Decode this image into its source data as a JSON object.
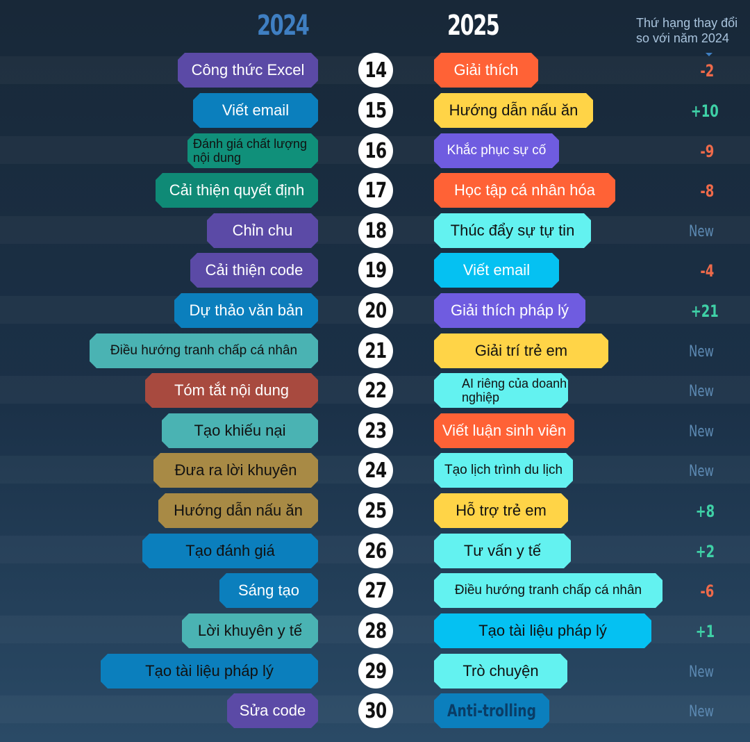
{
  "header": {
    "year_2024": "2024",
    "year_2025": "2025",
    "change_line1": "Thứ hạng thay đổi",
    "change_line2": "so với năm 2024"
  },
  "rows": [
    {
      "rank": "14",
      "left": {
        "label": "Công thức Excel",
        "color": "#5b4aa6",
        "text_color": "#ffffff"
      },
      "right": {
        "label": "Giải thích",
        "color": "#ff6236",
        "text_color": "#ffffff"
      },
      "change": "-2"
    },
    {
      "rank": "15",
      "left": {
        "label": "Viết email",
        "color": "#0b7fbd",
        "text_color": "#ffffff"
      },
      "right": {
        "label": "Hướng dẫn nấu ăn",
        "color": "#ffd447",
        "text_color": "#111111"
      },
      "change": "+10"
    },
    {
      "rank": "16",
      "left": {
        "label": "Đánh giá chất lượng nội dung",
        "color": "#10907a",
        "text_color": "#111111"
      },
      "right": {
        "label": "Khắc phục sự cố",
        "color": "#6f5ce0",
        "text_color": "#ffffff"
      },
      "change": "-9"
    },
    {
      "rank": "17",
      "left": {
        "label": "Cải thiện quyết định",
        "color": "#0f8a76",
        "text_color": "#ffffff"
      },
      "right": {
        "label": "Học tập cá nhân hóa",
        "color": "#ff6236",
        "text_color": "#ffffff"
      },
      "change": "-8"
    },
    {
      "rank": "18",
      "left": {
        "label": "Chỉn chu",
        "color": "#5b4aa6",
        "text_color": "#ffffff"
      },
      "right": {
        "label": "Thúc đẩy sự tự tin",
        "color": "#63f2f0",
        "text_color": "#111111"
      },
      "change": "New"
    },
    {
      "rank": "19",
      "left": {
        "label": "Cải thiện code",
        "color": "#5b4aa6",
        "text_color": "#ffffff"
      },
      "right": {
        "label": "Viết email",
        "color": "#05c1f2",
        "text_color": "#ffffff"
      },
      "change": "-4"
    },
    {
      "rank": "20",
      "left": {
        "label": "Dự thảo văn bản",
        "color": "#0b7fbd",
        "text_color": "#ffffff"
      },
      "right": {
        "label": "Giải thích pháp lý",
        "color": "#6f5ce0",
        "text_color": "#ffffff"
      },
      "change": "+21"
    },
    {
      "rank": "21",
      "left": {
        "label": "Điều hướng tranh chấp cá nhân",
        "color": "#4ab3b3",
        "text_color": "#111111"
      },
      "right": {
        "label": "Giải trí trẻ em",
        "color": "#ffd447",
        "text_color": "#111111"
      },
      "change": "New"
    },
    {
      "rank": "22",
      "left": {
        "label": "Tóm tắt nội dung",
        "color": "#a84a3f",
        "text_color": "#ffffff"
      },
      "right": {
        "label": "AI riêng của doanh nghiệp",
        "color": "#63f2f0",
        "text_color": "#111111"
      },
      "change": "New"
    },
    {
      "rank": "23",
      "left": {
        "label": "Tạo khiếu nại",
        "color": "#4ab3b3",
        "text_color": "#111111"
      },
      "right": {
        "label": "Viết luận sinh viên",
        "color": "#ff6236",
        "text_color": "#ffffff"
      },
      "change": "New"
    },
    {
      "rank": "24",
      "left": {
        "label": "Đưa ra lời khuyên",
        "color": "#a88a45",
        "text_color": "#111111"
      },
      "right": {
        "label": "Tạo lịch trình du lịch",
        "color": "#63f2f0",
        "text_color": "#111111"
      },
      "change": "New"
    },
    {
      "rank": "25",
      "left": {
        "label": "Hướng dẫn nấu ăn",
        "color": "#a88a45",
        "text_color": "#111111"
      },
      "right": {
        "label": "Hỗ trợ trẻ em",
        "color": "#ffd447",
        "text_color": "#111111"
      },
      "change": "+8"
    },
    {
      "rank": "26",
      "left": {
        "label": "Tạo đánh giá",
        "color": "#0b7fbd",
        "text_color": "#111111"
      },
      "right": {
        "label": "Tư vấn y tế",
        "color": "#63f2f0",
        "text_color": "#111111"
      },
      "change": "+2"
    },
    {
      "rank": "27",
      "left": {
        "label": "Sáng tạo",
        "color": "#0b7fbd",
        "text_color": "#ffffff"
      },
      "right": {
        "label": "Điều hướng tranh chấp cá nhân",
        "color": "#63f2f0",
        "text_color": "#111111"
      },
      "change": "-6"
    },
    {
      "rank": "28",
      "left": {
        "label": "Lời khuyên y tế",
        "color": "#4ab3b3",
        "text_color": "#111111"
      },
      "right": {
        "label": "Tạo tài liệu pháp lý",
        "color": "#05c1f2",
        "text_color": "#111111"
      },
      "change": "+1"
    },
    {
      "rank": "29",
      "left": {
        "label": "Tạo tài liệu pháp lý",
        "color": "#0b7fbd",
        "text_color": "#111111"
      },
      "right": {
        "label": "Trò chuyện",
        "color": "#63f2f0",
        "text_color": "#111111"
      },
      "change": "New"
    },
    {
      "rank": "30",
      "left": {
        "label": "Sửa code",
        "color": "#5b4aa6",
        "text_color": "#ffffff"
      },
      "right": {
        "label": "Anti-trolling",
        "color": "#0b7fbd",
        "text_color": "#0a3d66"
      },
      "change": "New"
    }
  ]
}
